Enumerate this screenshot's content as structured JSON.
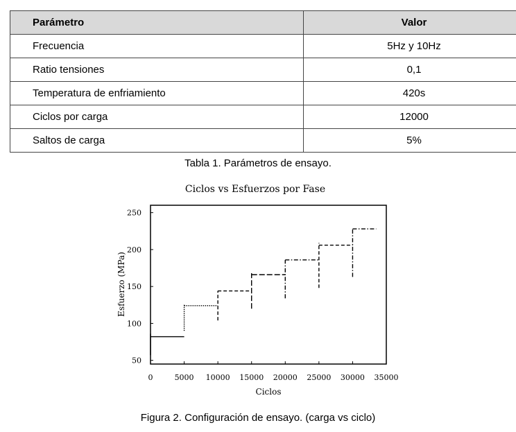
{
  "table": {
    "headers": [
      "Parámetro",
      "Valor"
    ],
    "rows": [
      [
        "Frecuencia",
        "5Hz y 10Hz"
      ],
      [
        "Ratio tensiones",
        "0,1"
      ],
      [
        "Temperatura de enfriamiento",
        "420s"
      ],
      [
        "Ciclos por carga",
        "12000"
      ],
      [
        "Saltos de carga",
        "5%"
      ]
    ],
    "caption": "Tabla 1. Parámetros de ensayo."
  },
  "figure_caption": "Figura 2. Configuración de ensayo. (carga vs ciclo)",
  "chart_data": {
    "type": "line",
    "title": "Ciclos vs Esfuerzos por Fase",
    "xlabel": "Ciclos",
    "ylabel": "Esfuerzo (MPa)",
    "xlim": [
      0,
      35000
    ],
    "ylim": [
      45,
      260
    ],
    "xticks": [
      0,
      5000,
      10000,
      15000,
      20000,
      25000,
      30000,
      35000
    ],
    "yticks": [
      50,
      100,
      150,
      200,
      250
    ],
    "grid": false,
    "series": [
      {
        "dash": "solid",
        "x": [
          0,
          5000
        ],
        "y": [
          82,
          82
        ],
        "min": 57,
        "max": 86
      },
      {
        "dash": "dotted",
        "x": [
          5000,
          10000
        ],
        "y": [
          124,
          124
        ],
        "min": 90,
        "max": 126
      },
      {
        "dash": "dashed",
        "x": [
          10000,
          15000
        ],
        "y": [
          144,
          144
        ],
        "min": 104,
        "max": 144
      },
      {
        "dash": "longdash",
        "x": [
          15000,
          20000
        ],
        "y": [
          166,
          166
        ],
        "min": 120,
        "max": 168
      },
      {
        "dash": "dashdot",
        "x": [
          20000,
          25000
        ],
        "y": [
          186,
          186
        ],
        "min": 134,
        "max": 186
      },
      {
        "dash": "dashed",
        "x": [
          25000,
          30000
        ],
        "y": [
          206,
          206
        ],
        "min": 148,
        "max": 209
      },
      {
        "dash": "dashdot",
        "x": [
          30000,
          33500
        ],
        "y": [
          228,
          228
        ],
        "min": 163,
        "max": 228
      }
    ]
  }
}
